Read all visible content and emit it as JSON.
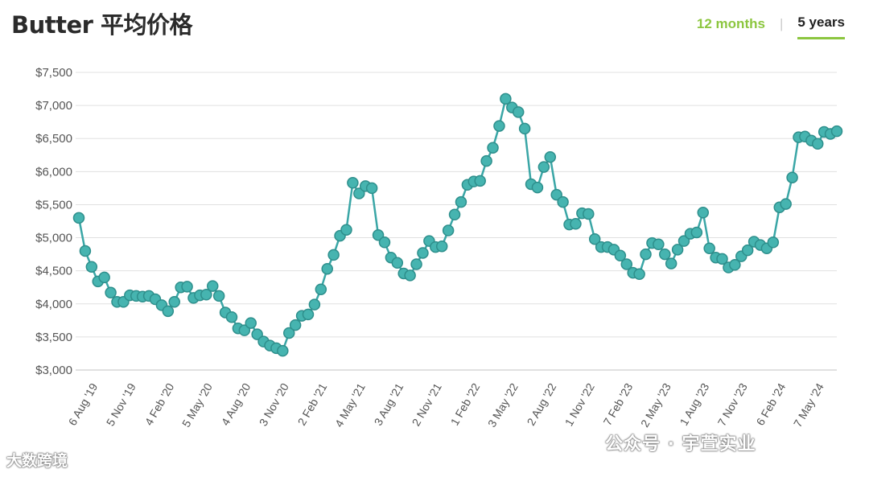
{
  "header": {
    "title": "Butter 平均价格",
    "tabs": [
      {
        "label": "12 months",
        "active": false
      },
      {
        "label": "5 years",
        "active": true
      }
    ]
  },
  "colors": {
    "line": "#3aa6a6",
    "marker_fill": "#46b4b0",
    "marker_stroke": "#2e8f8c",
    "grid": "#e0e0e0",
    "accent": "#8cc63f"
  },
  "watermarks": {
    "left": "大数跨境",
    "right": "公众号 · 宇萱实业"
  },
  "chart_data": {
    "type": "line",
    "title": "",
    "xlabel": "",
    "ylabel": "",
    "ylim": [
      3000,
      7500
    ],
    "y_ticks": [
      {
        "value": 3000,
        "label": "$3,000"
      },
      {
        "value": 3500,
        "label": "$3,500"
      },
      {
        "value": 4000,
        "label": "$4,000"
      },
      {
        "value": 4500,
        "label": "$4,500"
      },
      {
        "value": 5000,
        "label": "$5,000"
      },
      {
        "value": 5500,
        "label": "$5,500"
      },
      {
        "value": 6000,
        "label": "$6,000"
      },
      {
        "value": 6500,
        "label": "$6,500"
      },
      {
        "value": 7000,
        "label": "$7,000"
      },
      {
        "value": 7500,
        "label": "$7,500"
      }
    ],
    "x_ticks": [
      {
        "index": 2,
        "label": "6 Aug '19"
      },
      {
        "index": 8,
        "label": "5 Nov '19"
      },
      {
        "index": 14,
        "label": "4 Feb '20"
      },
      {
        "index": 20,
        "label": "5 May '20"
      },
      {
        "index": 26,
        "label": "4 Aug '20"
      },
      {
        "index": 32,
        "label": "3 Nov '20"
      },
      {
        "index": 38,
        "label": "2 Feb '21"
      },
      {
        "index": 44,
        "label": "4 May '21"
      },
      {
        "index": 50,
        "label": "3 Aug '21"
      },
      {
        "index": 56,
        "label": "2 Nov '21"
      },
      {
        "index": 62,
        "label": "1 Feb '22"
      },
      {
        "index": 68,
        "label": "3 May '22"
      },
      {
        "index": 74,
        "label": "2 Aug '22"
      },
      {
        "index": 80,
        "label": "1 Nov '22"
      },
      {
        "index": 86,
        "label": "7 Feb '23"
      },
      {
        "index": 92,
        "label": "2 May '23"
      },
      {
        "index": 98,
        "label": "1 Aug '23"
      },
      {
        "index": 104,
        "label": "7 Nov '23"
      },
      {
        "index": 110,
        "label": "6 Feb '24"
      },
      {
        "index": 116,
        "label": "7 May '24"
      }
    ],
    "grid": true,
    "legend": "none",
    "series": [
      {
        "values": [
          5300,
          4800,
          4560,
          4340,
          4400,
          4170,
          4030,
          4030,
          4130,
          4120,
          4110,
          4120,
          4070,
          3980,
          3890,
          4030,
          4250,
          4260,
          4090,
          4130,
          4140,
          4270,
          4120,
          3870,
          3800,
          3630,
          3600,
          3710,
          3540,
          3430,
          3370,
          3330,
          3290,
          3560,
          3680,
          3820,
          3840,
          3990,
          4220,
          4530,
          4740,
          5030,
          5120,
          5830,
          5670,
          5780,
          5750,
          5040,
          4930,
          4700,
          4620,
          4460,
          4430,
          4600,
          4770,
          4950,
          4860,
          4870,
          5110,
          5350,
          5540,
          5800,
          5850,
          5860,
          6160,
          6360,
          6690,
          7100,
          6970,
          6900,
          6650,
          5810,
          5760,
          6070,
          6220,
          5650,
          5540,
          5200,
          5210,
          5370,
          5360,
          4980,
          4860,
          4860,
          4820,
          4730,
          4600,
          4470,
          4450,
          4750,
          4920,
          4900,
          4750,
          4610,
          4820,
          4950,
          5060,
          5080,
          5380,
          4840,
          4700,
          4680,
          4550,
          4590,
          4720,
          4810,
          4940,
          4890,
          4840,
          4930,
          5460,
          5510,
          5910,
          6520,
          6530,
          6470,
          6420,
          6600,
          6570,
          6610
        ]
      }
    ]
  }
}
